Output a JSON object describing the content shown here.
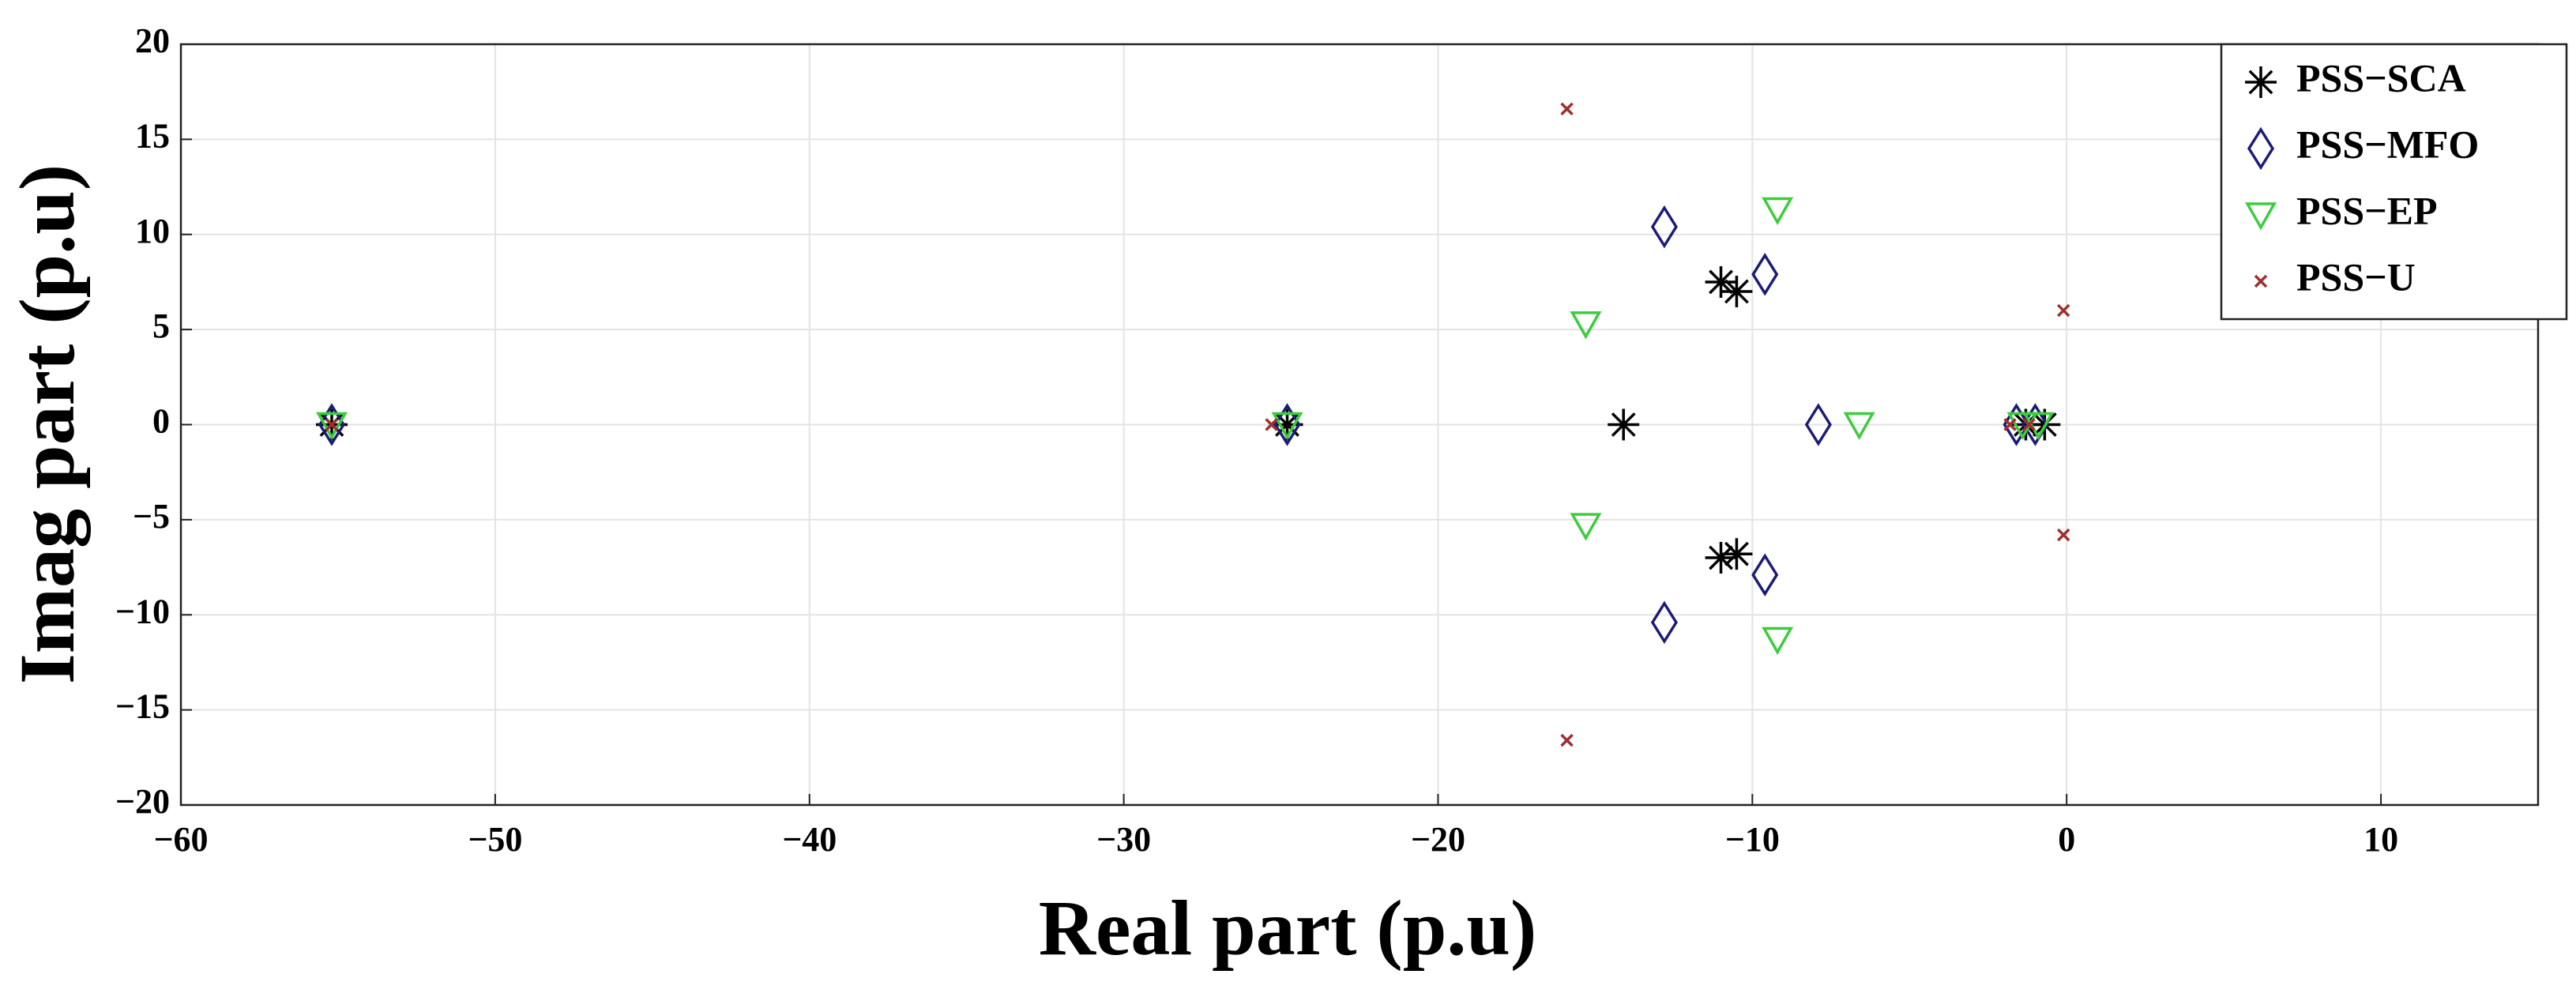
{
  "chart_data": {
    "type": "scatter",
    "xlabel": "Real part (p.u)",
    "ylabel": "Imag part (p.u)",
    "xlim": [
      -60,
      15
    ],
    "xticks": [
      {
        "value": -60,
        "label": "−60"
      },
      {
        "value": -50,
        "label": "−50"
      },
      {
        "value": -40,
        "label": "−40"
      },
      {
        "value": -30,
        "label": "−30"
      },
      {
        "value": -20,
        "label": "−20"
      },
      {
        "value": -10,
        "label": "−10"
      },
      0,
      10
    ],
    "ylim": [
      -20,
      20
    ],
    "yticks": [
      {
        "value": -20,
        "label": "−20"
      },
      {
        "value": -15,
        "label": "−15"
      },
      {
        "value": -10,
        "label": "−10"
      },
      {
        "value": -5,
        "label": "−5"
      },
      0,
      5,
      10,
      15,
      20
    ],
    "grid": true,
    "legend": "upper right",
    "series": [
      {
        "name": "PSS−SCA",
        "color": "#000000",
        "marker": "asterisk",
        "x": [
          -55.2,
          -24.8,
          -14.1,
          -11.0,
          -10.5,
          -11.0,
          -10.5,
          -1.3,
          -0.7
        ],
        "y": [
          0,
          0,
          0,
          7.5,
          7.0,
          -7.0,
          -6.8,
          0,
          0
        ]
      },
      {
        "name": "PSS−MFO",
        "color": "#1c1c78",
        "marker": "diamond",
        "x": [
          -55.2,
          -24.8,
          -12.8,
          -9.6,
          -7.9,
          -12.8,
          -9.6,
          -1.6,
          -1.0
        ],
        "y": [
          0,
          0,
          10.4,
          7.9,
          0,
          -10.4,
          -7.9,
          0,
          0
        ]
      },
      {
        "name": "PSS−EP",
        "color": "#3ccc3c",
        "marker": "triangle-down",
        "x": [
          -55.2,
          -24.8,
          -9.2,
          -15.3,
          -6.6,
          -15.3,
          -9.2,
          -1.4,
          -0.9
        ],
        "y": [
          0,
          0,
          11.3,
          5.3,
          0,
          -5.3,
          -11.3,
          0,
          0
        ]
      },
      {
        "name": "PSS−U",
        "color": "#a03030",
        "marker": "x",
        "x": [
          -55.2,
          -25.3,
          -15.9,
          -0.1,
          -0.1,
          -15.9,
          -1.8,
          -1.2
        ],
        "y": [
          0,
          0,
          16.6,
          6.0,
          -5.8,
          -16.6,
          0,
          0
        ]
      }
    ]
  }
}
